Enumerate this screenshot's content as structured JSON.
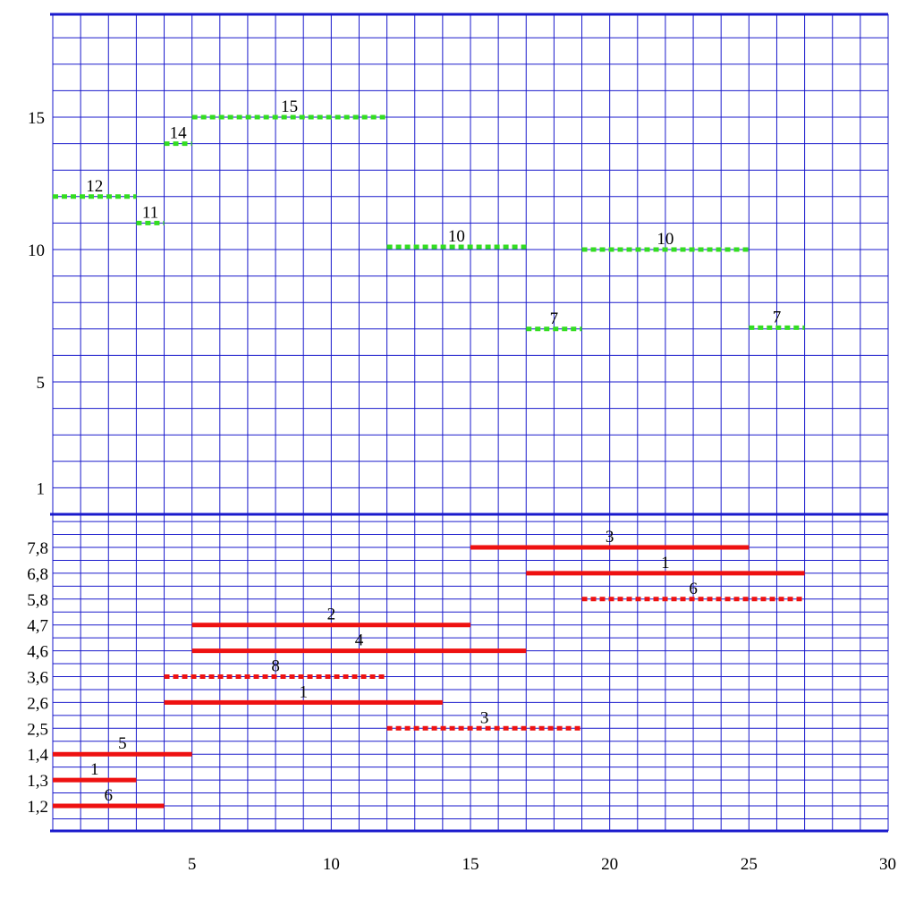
{
  "chart_data": [
    {
      "type": "line",
      "panel": "upper",
      "title": "",
      "xlabel": "",
      "ylabel": "",
      "xlim": [
        0,
        30
      ],
      "ylim": [
        0,
        19
      ],
      "grid": true,
      "yticks": [
        {
          "value": 1,
          "label": "1"
        },
        {
          "value": 5,
          "label": "5"
        },
        {
          "value": 10,
          "label": "10"
        },
        {
          "value": 15,
          "label": "15"
        }
      ],
      "colors": {
        "dashed_segment": "#33dd22"
      },
      "segments": [
        {
          "label": "12",
          "x0": 0,
          "x1": 3,
          "y": 12,
          "style": "dashed"
        },
        {
          "label": "11",
          "x0": 3,
          "x1": 4,
          "y": 11,
          "style": "dashed"
        },
        {
          "label": "14",
          "x0": 4,
          "x1": 5,
          "y": 14,
          "style": "dashed"
        },
        {
          "label": "15",
          "x0": 5,
          "x1": 12,
          "y": 15,
          "style": "dashed"
        },
        {
          "label": "10",
          "x0": 12,
          "x1": 17,
          "y": 10.1,
          "style": "dashed"
        },
        {
          "label": "7",
          "x0": 17,
          "x1": 19,
          "y": 7,
          "style": "dashed"
        },
        {
          "label": "10",
          "x0": 19,
          "x1": 25,
          "y": 10,
          "style": "dashed"
        },
        {
          "label": "7",
          "x0": 25,
          "x1": 27,
          "y": 7.05,
          "style": "dashed"
        }
      ]
    },
    {
      "type": "line",
      "panel": "lower",
      "title": "",
      "xlabel": "",
      "ylabel": "",
      "xlim": [
        0,
        30
      ],
      "grid": true,
      "xticks": [
        {
          "value": 5,
          "label": "5"
        },
        {
          "value": 10,
          "label": "10"
        },
        {
          "value": 15,
          "label": "15"
        },
        {
          "value": 20,
          "label": "20"
        },
        {
          "value": 25,
          "label": "25"
        },
        {
          "value": 30,
          "label": "30"
        }
      ],
      "categories": [
        "1,2",
        "1,3",
        "1,4",
        "2,5",
        "2,6",
        "3,6",
        "4,6",
        "4,7",
        "5,8",
        "6,8",
        "7,8"
      ],
      "colors": {
        "segment": "#ee1111"
      },
      "segments": [
        {
          "label": "6",
          "x0": 0,
          "x1": 4,
          "row": "1,2",
          "style": "solid"
        },
        {
          "label": "1",
          "x0": 0,
          "x1": 3,
          "row": "1,3",
          "style": "solid"
        },
        {
          "label": "5",
          "x0": 0,
          "x1": 5,
          "row": "1,4",
          "style": "solid"
        },
        {
          "label": "3",
          "x0": 12,
          "x1": 19,
          "row": "2,5",
          "style": "dashed"
        },
        {
          "label": "1",
          "x0": 4,
          "x1": 14,
          "row": "2,6",
          "style": "solid"
        },
        {
          "label": "8",
          "x0": 4,
          "x1": 12,
          "row": "3,6",
          "style": "dashed"
        },
        {
          "label": "4",
          "x0": 5,
          "x1": 17,
          "row": "4,6",
          "style": "solid"
        },
        {
          "label": "2",
          "x0": 5,
          "x1": 15,
          "row": "4,7",
          "style": "solid"
        },
        {
          "label": "6",
          "x0": 19,
          "x1": 27,
          "row": "5,8",
          "style": "dashed"
        },
        {
          "label": "1",
          "x0": 17,
          "x1": 27,
          "row": "6,8",
          "style": "solid"
        },
        {
          "label": "3",
          "x0": 15,
          "x1": 25,
          "row": "7,8",
          "style": "solid"
        }
      ]
    }
  ]
}
